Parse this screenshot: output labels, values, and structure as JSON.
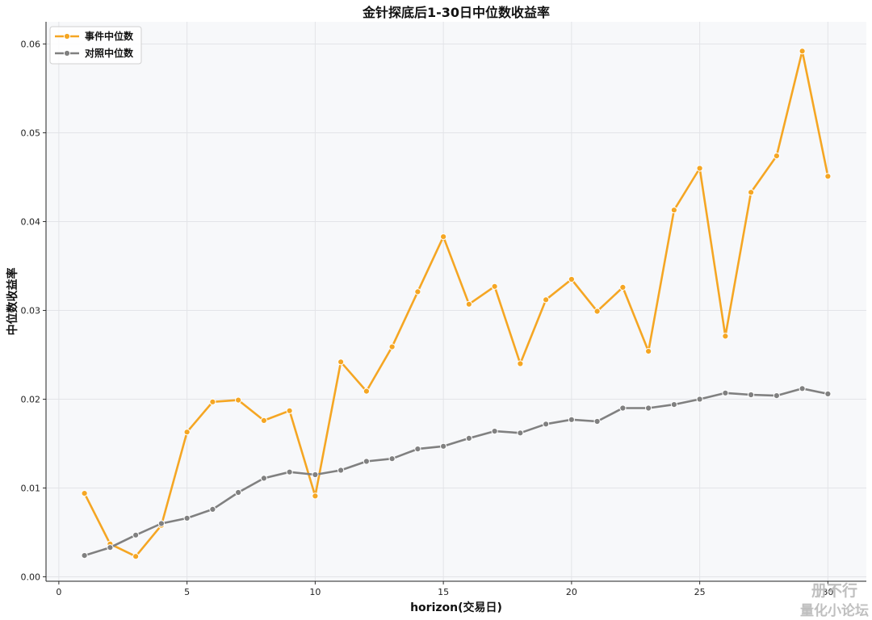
{
  "chart_data": {
    "type": "line",
    "title": "金针探底后1-30日中位数收益率",
    "xlabel": "horizon(交易日)",
    "ylabel": "中位数收益率",
    "xlim": [
      -0.5,
      31.5
    ],
    "ylim": [
      -0.0005,
      0.0625
    ],
    "xticks": [
      0,
      5,
      10,
      15,
      20,
      25,
      30
    ],
    "xtick_labels": [
      "0",
      "5",
      "10",
      "15",
      "20",
      "25",
      "30"
    ],
    "yticks": [
      0.0,
      0.01,
      0.02,
      0.03,
      0.04,
      0.05,
      0.06
    ],
    "ytick_labels": [
      "0.00",
      "0.01",
      "0.02",
      "0.03",
      "0.04",
      "0.05",
      "0.06"
    ],
    "grid": true,
    "legend_position": "top-left",
    "x": [
      1,
      2,
      3,
      4,
      5,
      6,
      7,
      8,
      9,
      10,
      11,
      12,
      13,
      14,
      15,
      16,
      17,
      18,
      19,
      20,
      21,
      22,
      23,
      24,
      25,
      26,
      27,
      28,
      29,
      30
    ],
    "series": [
      {
        "name": "事件中位数",
        "color": "#f5a623",
        "values": [
          0.0094,
          0.0037,
          0.0023,
          0.0058,
          0.0163,
          0.0197,
          0.0199,
          0.0176,
          0.0187,
          0.0091,
          0.0242,
          0.0209,
          0.0259,
          0.0321,
          0.0383,
          0.0307,
          0.0327,
          0.024,
          0.0312,
          0.0335,
          0.0299,
          0.0326,
          0.0254,
          0.0413,
          0.046,
          0.0271,
          0.0433,
          0.0474,
          0.0592,
          0.0451
        ]
      },
      {
        "name": "对照中位数",
        "color": "#808080",
        "values": [
          0.0024,
          0.0033,
          0.0047,
          0.006,
          0.0066,
          0.0076,
          0.0095,
          0.0111,
          0.0118,
          0.0115,
          0.012,
          0.013,
          0.0133,
          0.0144,
          0.0147,
          0.0156,
          0.0164,
          0.0162,
          0.0172,
          0.0177,
          0.0175,
          0.019,
          0.019,
          0.0194,
          0.02,
          0.0207,
          0.0205,
          0.0204,
          0.0212,
          0.0206
        ]
      }
    ]
  },
  "watermark": {
    "line1": "册不行",
    "line2": "量化小论坛"
  }
}
